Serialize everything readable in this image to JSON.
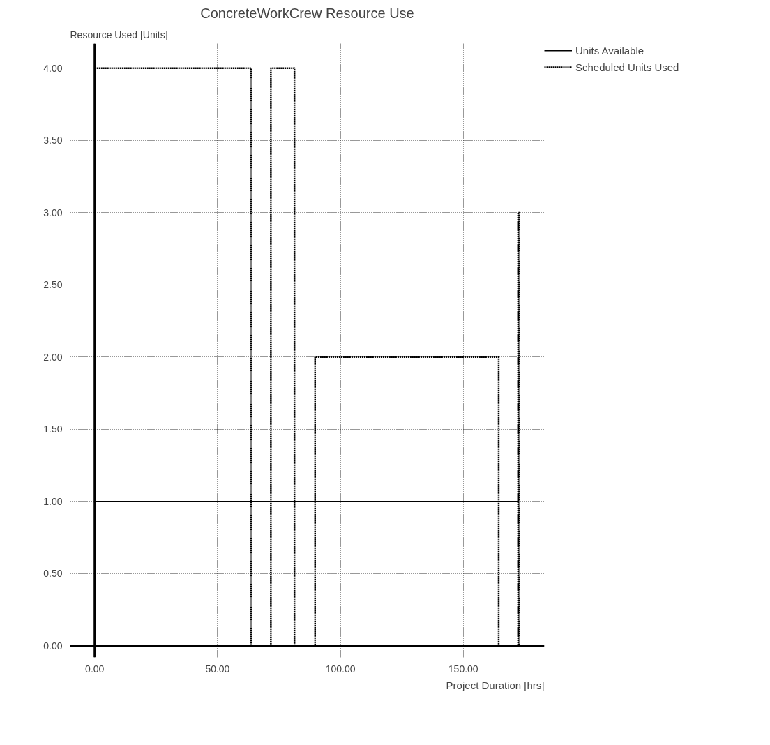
{
  "chart_data": {
    "type": "line",
    "title": "ConcreteWorkCrew Resource Use",
    "xlabel": "Project Duration [hrs]",
    "ylabel": "Resource Used [Units]",
    "series": [
      {
        "name": "Units Available",
        "color": "#000000",
        "line_style": "solid",
        "x": [
          0,
          172.6
        ],
        "values": [
          1,
          1
        ]
      },
      {
        "name": "Scheduled Units Used",
        "type": "step",
        "color": "#000000",
        "line_style": "dotted",
        "x": [
          0,
          63.6,
          71.7,
          81.3,
          89.7,
          164.4,
          172.3,
          172.6
        ],
        "values": [
          4,
          0,
          4,
          0,
          2,
          0,
          3,
          0
        ]
      }
    ],
    "xlim": [
      -10,
      183
    ],
    "ylim": [
      -0.08,
      4.17
    ],
    "xticks": [
      {
        "value": 0,
        "label": "0.00"
      },
      {
        "value": 50,
        "label": "50.00"
      },
      {
        "value": 100,
        "label": "100.00"
      },
      {
        "value": 150,
        "label": "150.00"
      }
    ],
    "yticks": [
      {
        "value": 0,
        "label": "0.00"
      },
      {
        "value": 0.5,
        "label": "0.50"
      },
      {
        "value": 1,
        "label": "1.00"
      },
      {
        "value": 1.5,
        "label": "1.50"
      },
      {
        "value": 2,
        "label": "2.00"
      },
      {
        "value": 2.5,
        "label": "2.50"
      },
      {
        "value": 3,
        "label": "3.00"
      },
      {
        "value": 3.5,
        "label": "3.50"
      },
      {
        "value": 4,
        "label": "4.00"
      }
    ],
    "grid": true,
    "legend": "top right",
    "marker": "none"
  }
}
